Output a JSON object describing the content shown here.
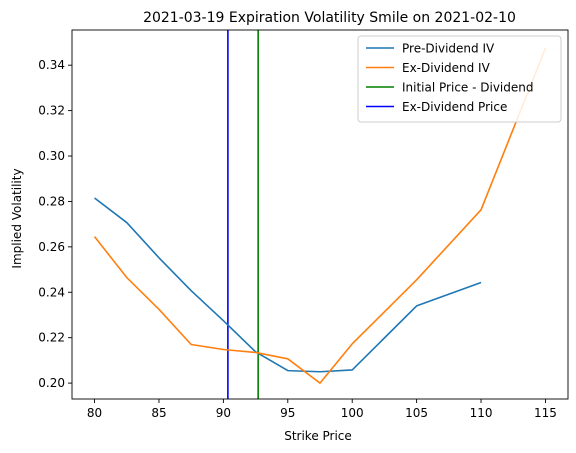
{
  "chart_data": {
    "type": "line",
    "title": "2021-03-19 Expiration Volatility Smile on 2021-02-10",
    "xlabel": "Strike Price",
    "ylabel": "Implied Volatility",
    "xlim": [
      78.25,
      116.75
    ],
    "ylim": [
      0.193,
      0.3555
    ],
    "xticks": [
      80,
      85,
      90,
      95,
      100,
      105,
      110,
      115
    ],
    "yticks": [
      0.2,
      0.22,
      0.24,
      0.26,
      0.28,
      0.3,
      0.32,
      0.34
    ],
    "grid": false,
    "legend_position": "top-right",
    "series": [
      {
        "name": "Pre-Dividend IV",
        "color": "#1f77b4",
        "x": [
          80,
          82.5,
          85,
          87.5,
          90,
          92.5,
          95,
          97.5,
          100,
          105,
          110
        ],
        "y": [
          0.2815,
          0.2707,
          0.2552,
          0.2407,
          0.2275,
          0.2138,
          0.2055,
          0.205,
          0.2058,
          0.234,
          0.2443
        ]
      },
      {
        "name": "Ex-Dividend IV",
        "color": "#ff7f0e",
        "x": [
          80,
          82.5,
          85,
          87.5,
          90,
          92.5,
          95,
          97.5,
          100,
          105,
          110,
          115
        ],
        "y": [
          0.2645,
          0.2465,
          0.2325,
          0.217,
          0.2148,
          0.2135,
          0.2107,
          0.2,
          0.2173,
          0.2455,
          0.2763,
          0.3475
        ]
      }
    ],
    "vlines": [
      {
        "name": "Initial Price - Dividend",
        "color": "#008000",
        "x": 92.7
      },
      {
        "name": "Ex-Dividend Price",
        "color": "#0000ff",
        "x": 90.35
      }
    ]
  }
}
